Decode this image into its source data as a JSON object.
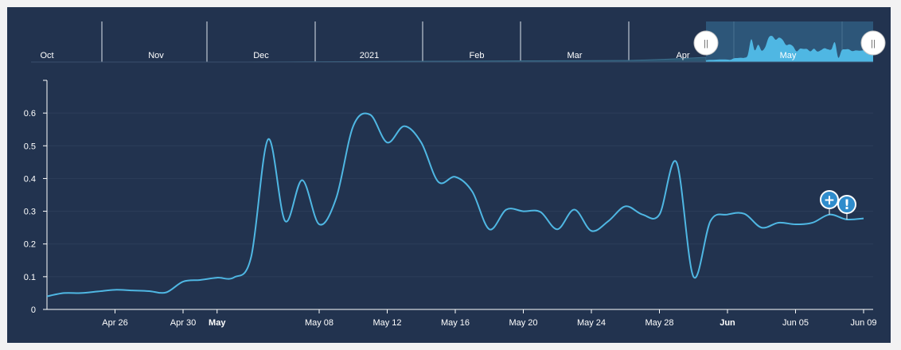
{
  "chart_data": {
    "type": "line",
    "title": "",
    "xlabel": "",
    "ylabel": "",
    "ylim": [
      0,
      0.7
    ],
    "y_ticks": [
      "0",
      "0.1",
      "0.2",
      "0.3",
      "0.4",
      "0.5",
      "0.6"
    ],
    "x_ticks": [
      {
        "date": "2021-04-26",
        "label": "Apr 26",
        "bold": false
      },
      {
        "date": "2021-04-30",
        "label": "Apr 30",
        "bold": false
      },
      {
        "date": "2021-05-02",
        "label": "May",
        "bold": true
      },
      {
        "date": "2021-05-08",
        "label": "May 08",
        "bold": false
      },
      {
        "date": "2021-05-12",
        "label": "May 12",
        "bold": false
      },
      {
        "date": "2021-05-16",
        "label": "May 16",
        "bold": false
      },
      {
        "date": "2021-05-20",
        "label": "May 20",
        "bold": false
      },
      {
        "date": "2021-05-24",
        "label": "May 24",
        "bold": false
      },
      {
        "date": "2021-05-28",
        "label": "May 28",
        "bold": false
      },
      {
        "date": "2021-06-01",
        "label": "Jun",
        "bold": true
      },
      {
        "date": "2021-06-05",
        "label": "Jun 05",
        "bold": false
      },
      {
        "date": "2021-06-09",
        "label": "Jun 09",
        "bold": false
      }
    ],
    "xlim": [
      "2021-04-22",
      "2021-06-09"
    ],
    "grid": true,
    "legend": "none",
    "colors": {
      "line": "#4fb7e3",
      "background": "#22334f",
      "grid": "#2c3e5a",
      "navigator_fill": "#4fb7e3"
    },
    "series": [
      {
        "x": [
          "2021-04-22",
          "2021-04-23",
          "2021-04-24",
          "2021-04-25",
          "2021-04-26",
          "2021-04-27",
          "2021-04-28",
          "2021-04-29",
          "2021-04-30",
          "2021-05-01",
          "2021-05-02",
          "2021-05-03",
          "2021-05-04",
          "2021-05-05",
          "2021-05-06",
          "2021-05-07",
          "2021-05-08",
          "2021-05-09",
          "2021-05-10",
          "2021-05-11",
          "2021-05-12",
          "2021-05-13",
          "2021-05-14",
          "2021-05-15",
          "2021-05-16",
          "2021-05-17",
          "2021-05-18",
          "2021-05-19",
          "2021-05-20",
          "2021-05-21",
          "2021-05-22",
          "2021-05-23",
          "2021-05-24",
          "2021-05-25",
          "2021-05-26",
          "2021-05-27",
          "2021-05-28",
          "2021-05-29",
          "2021-05-30",
          "2021-05-31",
          "2021-06-01",
          "2021-06-02",
          "2021-06-03",
          "2021-06-04",
          "2021-06-05",
          "2021-06-06",
          "2021-06-07",
          "2021-06-08",
          "2021-06-09"
        ],
        "values": [
          0.04,
          0.05,
          0.05,
          0.055,
          0.06,
          0.058,
          0.056,
          0.052,
          0.085,
          0.09,
          0.097,
          0.098,
          0.16,
          0.52,
          0.27,
          0.395,
          0.26,
          0.34,
          0.56,
          0.595,
          0.51,
          0.56,
          0.51,
          0.39,
          0.405,
          0.36,
          0.245,
          0.305,
          0.3,
          0.298,
          0.245,
          0.305,
          0.24,
          0.27,
          0.315,
          0.29,
          0.29,
          0.45,
          0.1,
          0.27,
          0.29,
          0.292,
          0.25,
          0.265,
          0.26,
          0.265,
          0.29,
          0.275,
          0.278
        ]
      }
    ],
    "flags": [
      {
        "date": "2021-06-07",
        "symbol": "+"
      },
      {
        "date": "2021-06-08",
        "symbol": "!"
      }
    ]
  },
  "navigator": {
    "labels": [
      "Oct",
      "Nov",
      "Dec",
      "2021",
      "Feb",
      "Mar",
      "Apr",
      "May"
    ],
    "handle_symbol": "||",
    "selected_range": [
      "2021-04-22",
      "2021-06-09"
    ]
  }
}
